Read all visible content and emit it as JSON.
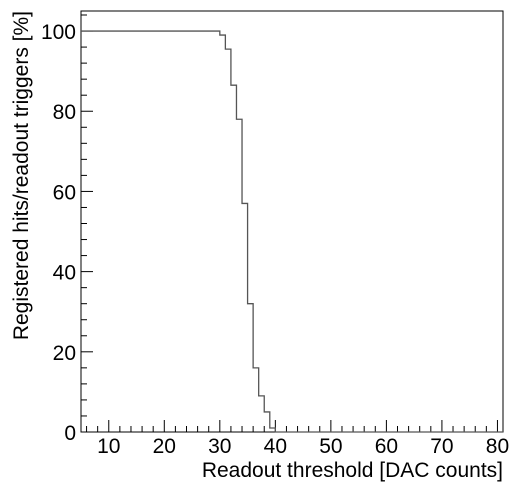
{
  "chart_data": {
    "type": "line",
    "step": true,
    "title": "",
    "xlabel": "Readout threshold [DAC counts]",
    "ylabel": "Registered hits/readout triggers [%]",
    "xlim": [
      5,
      81
    ],
    "ylim": [
      0,
      105
    ],
    "x_major_ticks": [
      10,
      20,
      30,
      40,
      50,
      60,
      70,
      80
    ],
    "x_minor_step": 2,
    "y_major_ticks": [
      0,
      20,
      40,
      60,
      80,
      100
    ],
    "y_minor_step": 4,
    "grid": false,
    "series": [
      {
        "color": "#555555",
        "bins": [
          {
            "x0": 5,
            "x1": 30,
            "y": 100
          },
          {
            "x0": 30,
            "x1": 31,
            "y": 99
          },
          {
            "x0": 31,
            "x1": 32,
            "y": 95.5
          },
          {
            "x0": 32,
            "x1": 33,
            "y": 86.5
          },
          {
            "x0": 33,
            "x1": 34,
            "y": 78
          },
          {
            "x0": 34,
            "x1": 35,
            "y": 57
          },
          {
            "x0": 35,
            "x1": 36,
            "y": 32
          },
          {
            "x0": 36,
            "x1": 37,
            "y": 16
          },
          {
            "x0": 37,
            "x1": 38,
            "y": 9
          },
          {
            "x0": 38,
            "x1": 39,
            "y": 5
          },
          {
            "x0": 39,
            "x1": 40,
            "y": 1
          },
          {
            "x0": 40,
            "x1": 81,
            "y": 0
          }
        ]
      }
    ]
  }
}
